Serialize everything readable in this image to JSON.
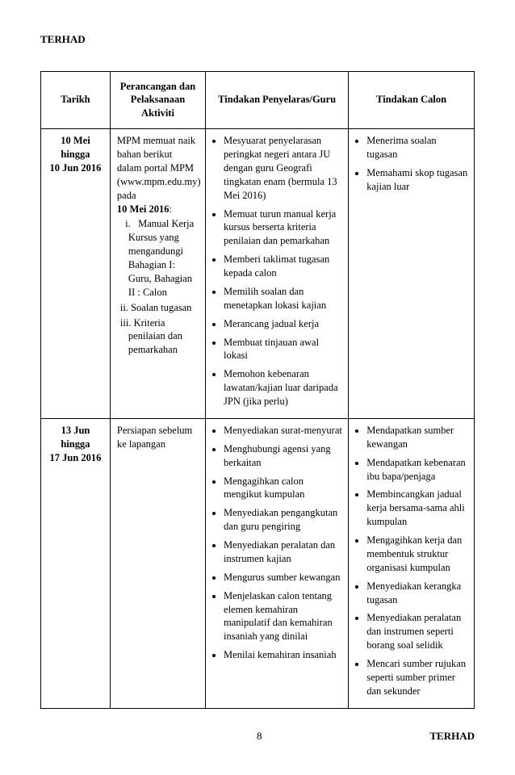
{
  "header": {
    "label": "TERHAD"
  },
  "table": {
    "headers": {
      "c1": "Tarikh",
      "c2": "Perancangan dan Pelaksanaan Aktiviti",
      "c3": "Tindakan Penyelaras/Guru",
      "c4": "Tindakan Calon"
    },
    "rows": [
      {
        "tarikh_line1": "10 Mei",
        "tarikh_line2": "hingga",
        "tarikh_line3": "10 Jun 2016",
        "aktiviti_intro": "MPM memuat naik bahan berikut dalam portal MPM (www.mpm.edu.my) pada",
        "aktiviti_date": "10 Mei 2016",
        "aktiviti_colon": ":",
        "aktiviti_i": "  i.   Manual Kerja Kursus yang mengandungi Bahagian I: Guru, Bahagian II : Calon",
        "aktiviti_ii": "ii. Soalan tugasan",
        "aktiviti_iii": "iii. Kriteria penilaian dan pemarkahan",
        "guru": [
          "Mesyuarat penyelarasan peringkat negeri antara JU dengan guru Geografi tingkatan enam (bermula 13 Mei 2016)",
          "Memuat turun manual kerja kursus berserta kriteria penilaian dan pemarkahan",
          "Memberi taklimat tugasan kepada calon",
          "Memilih soalan dan menetapkan lokasi kajian",
          "Merancang  jadual kerja",
          "Membuat tinjauan awal lokasi",
          "Memohon kebenaran lawatan/kajian luar daripada JPN (jika perlu)"
        ],
        "calon": [
          "Menerima soalan tugasan",
          "Memahami skop tugasan kajian luar"
        ]
      },
      {
        "tarikh_line1": "13 Jun",
        "tarikh_line2": "hingga",
        "tarikh_line3": "17 Jun 2016",
        "aktiviti_text": "Persiapan sebelum ke lapangan",
        "guru": [
          "Menyediakan surat-menyurat",
          "Menghubungi agensi yang berkaitan",
          "Mengagihkan calon mengikut kumpulan",
          "Menyediakan pengangkutan dan guru pengiring",
          "Menyediakan peralatan dan instrumen kajian",
          "Mengurus sumber kewangan",
          "Menjelaskan calon tentang elemen kemahiran manipulatif dan kemahiran insaniah yang dinilai",
          "Menilai kemahiran insaniah"
        ],
        "calon": [
          "Mendapatkan sumber kewangan",
          "Mendapatkan kebenaran ibu bapa/penjaga",
          "Membincangkan jadual kerja bersama-sama ahli kumpulan",
          "Mengagihkan kerja dan membentuk struktur organisasi kumpulan",
          "Menyediakan kerangka tugasan",
          "Menyediakan peralatan dan instrumen seperti borang soal selidik",
          "Mencari sumber rujukan seperti sumber primer dan sekunder"
        ]
      }
    ]
  },
  "footer": {
    "page": "8",
    "right": "TERHAD"
  }
}
